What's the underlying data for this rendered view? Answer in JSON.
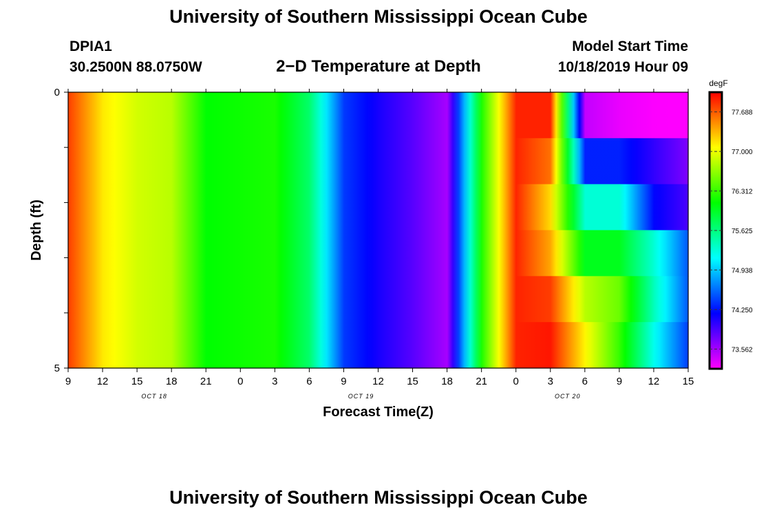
{
  "page": {
    "title_top": "University of Southern Mississippi Ocean Cube",
    "title_bottom": "University of Southern Mississippi Ocean Cube",
    "station_id": "DPIA1",
    "station_coords": "30.2500N 88.0750W",
    "model_label": "Model Start Time",
    "model_time": "10/18/2019 Hour 09"
  },
  "chart_data": {
    "type": "heatmap",
    "title": "2−D Temperature at Depth",
    "xlabel": "Forecast Time(Z)",
    "ylabel": "Depth (ft)",
    "ylim": [
      0,
      5
    ],
    "y_tick_labels": [
      "0",
      "5"
    ],
    "x_tick_labels": [
      "9",
      "12",
      "15",
      "18",
      "21",
      "0",
      "3",
      "6",
      "9",
      "12",
      "15",
      "18",
      "21",
      "0",
      "3",
      "6",
      "9",
      "12",
      "15"
    ],
    "date_labels": [
      {
        "label": "OCT 18",
        "at_tick": 2.5
      },
      {
        "label": "OCT 19",
        "at_tick": 8.5
      },
      {
        "label": "OCT 20",
        "at_tick": 14.5
      }
    ],
    "colorbar": {
      "unit": "degF",
      "min": 73.22,
      "max": 78.03,
      "ticks": [
        "77.688",
        "77.000",
        "76.312",
        "75.625",
        "74.938",
        "74.250",
        "73.562"
      ]
    },
    "time_hours": [
      0,
      3,
      6,
      9,
      12,
      15,
      18,
      21,
      24,
      27,
      30,
      33,
      36,
      39,
      42,
      45,
      48,
      51,
      54
    ],
    "layers": [
      [
        77.8,
        77.15,
        76.9,
        76.8,
        76.1,
        76.15,
        76.2,
        75.7,
        74.4,
        74.1,
        73.85,
        73.55,
        76.2,
        77.9,
        77.9,
        73.45,
        73.3,
        73.23,
        73.22
      ],
      [
        77.8,
        77.15,
        76.9,
        76.8,
        76.1,
        76.15,
        76.2,
        75.7,
        74.4,
        74.1,
        73.85,
        73.55,
        76.2,
        77.9,
        77.6,
        74.3,
        74.3,
        74.0,
        73.7
      ],
      [
        77.8,
        77.15,
        76.9,
        76.8,
        76.1,
        76.15,
        76.2,
        75.7,
        74.4,
        74.1,
        73.85,
        73.55,
        76.2,
        77.9,
        77.2,
        75.3,
        75.3,
        74.2,
        73.9
      ],
      [
        77.8,
        77.15,
        76.9,
        76.8,
        76.1,
        76.15,
        76.2,
        75.7,
        74.4,
        74.1,
        73.85,
        73.55,
        76.2,
        77.9,
        77.4,
        76.0,
        76.0,
        75.3,
        74.5
      ],
      [
        77.8,
        77.15,
        76.9,
        76.8,
        76.1,
        76.15,
        76.2,
        75.7,
        74.4,
        74.1,
        73.85,
        73.55,
        76.2,
        77.9,
        77.8,
        76.8,
        76.5,
        75.4,
        74.5
      ],
      [
        77.8,
        77.15,
        76.9,
        76.8,
        76.1,
        76.15,
        76.2,
        75.7,
        74.4,
        74.1,
        73.85,
        73.55,
        76.2,
        77.9,
        77.95,
        77.1,
        76.3,
        75.2,
        74.4
      ]
    ]
  }
}
